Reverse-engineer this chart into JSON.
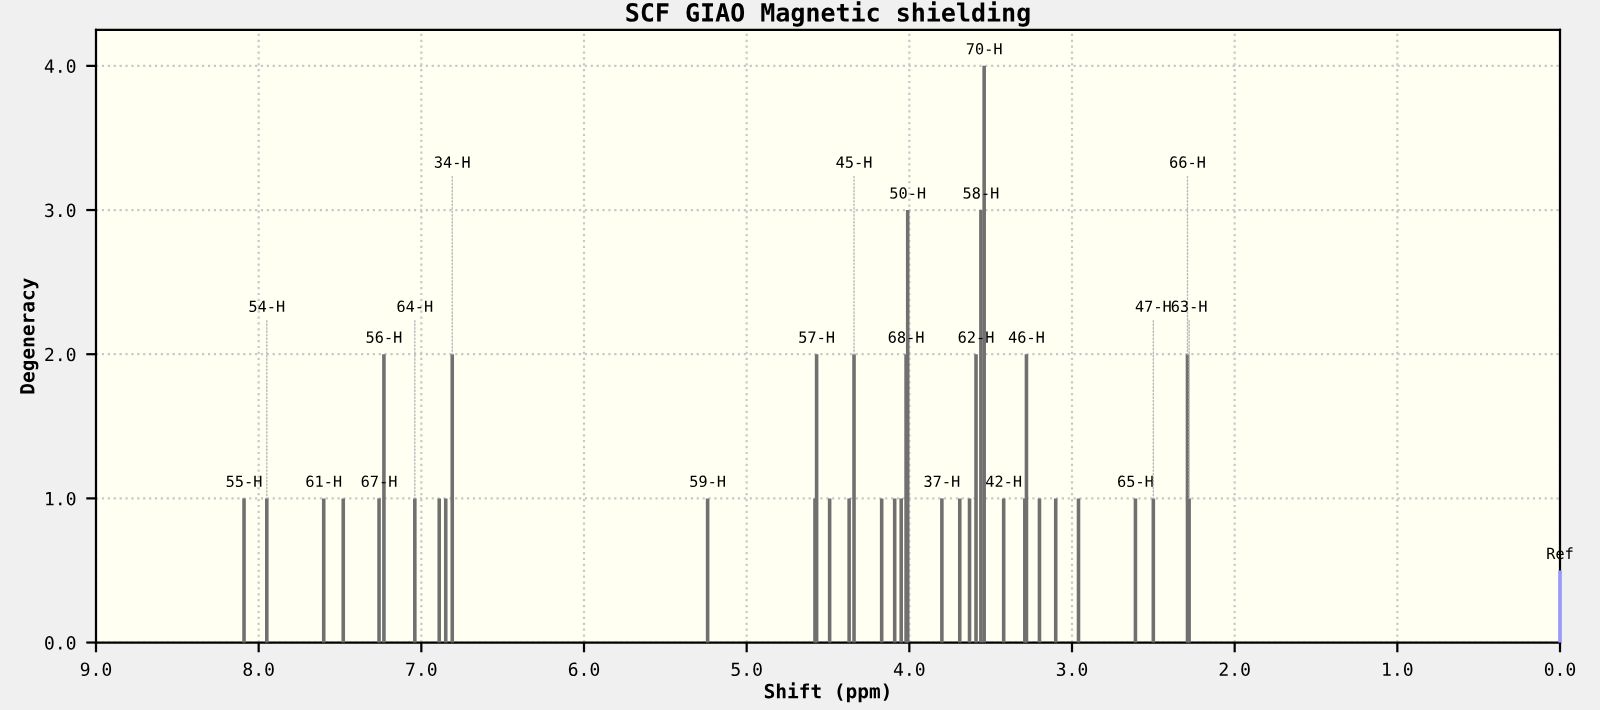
{
  "chart_data": {
    "type": "bar",
    "title": "SCF GIAO Magnetic shielding",
    "xlabel": "Shift (ppm)",
    "ylabel": "Degeneracy",
    "xlim": [
      9.0,
      0.0
    ],
    "xticks": [
      {
        "value": 9,
        "label": "9.0"
      },
      {
        "value": 8,
        "label": "8.0"
      },
      {
        "value": 7,
        "label": "7.0"
      },
      {
        "value": 6,
        "label": "6.0"
      },
      {
        "value": 5,
        "label": "5.0"
      },
      {
        "value": 4,
        "label": "4.0"
      },
      {
        "value": 3,
        "label": "3.0"
      },
      {
        "value": 2,
        "label": "2.0"
      },
      {
        "value": 1,
        "label": "1.0"
      },
      {
        "value": 0,
        "label": "0.0"
      }
    ],
    "ylim": [
      0,
      4.25
    ],
    "yticks": [
      {
        "value": 0,
        "label": "0.0"
      },
      {
        "value": 1,
        "label": "1.0"
      },
      {
        "value": 2,
        "label": "2.0"
      },
      {
        "value": 3,
        "label": "3.0"
      },
      {
        "value": 4,
        "label": "4.0"
      }
    ],
    "grid": true,
    "series": [
      {
        "color": "#707070",
        "x": [
          8.09,
          7.95,
          7.6,
          7.48,
          7.26,
          7.23,
          7.04,
          6.89,
          6.85,
          6.81,
          5.24,
          4.58,
          4.57,
          4.49,
          4.37,
          4.34,
          4.17,
          4.09,
          4.05,
          4.02,
          4.01,
          3.8,
          3.69,
          3.63,
          3.59,
          3.56,
          3.54,
          3.42,
          3.29,
          3.28,
          3.2,
          3.1,
          2.96,
          2.61,
          2.5,
          2.29,
          2.28
        ],
        "values": [
          1,
          1,
          1,
          1,
          1,
          2,
          1,
          1,
          1,
          2,
          1,
          1,
          2,
          1,
          1,
          2,
          1,
          1,
          1,
          2,
          3,
          1,
          1,
          1,
          2,
          3,
          4,
          1,
          1,
          2,
          1,
          1,
          1,
          1,
          1,
          2,
          1
        ]
      },
      {
        "color": "#9999ff",
        "x": [
          0.0
        ],
        "values": [
          0.5
        ]
      }
    ],
    "annotations": [
      {
        "text": "55-H",
        "x": 8.09,
        "y": 1
      },
      {
        "text": "54-H",
        "x": 7.95,
        "y": 1
      },
      {
        "text": "61-H",
        "x": 7.6,
        "y": 1
      },
      {
        "text": "67-H",
        "x": 7.26,
        "y": 1
      },
      {
        "text": "56-H",
        "x": 7.23,
        "y": 2
      },
      {
        "text": "64-H",
        "x": 7.04,
        "y": 1
      },
      {
        "text": "34-H",
        "x": 6.81,
        "y": 2
      },
      {
        "text": "59-H",
        "x": 5.24,
        "y": 1
      },
      {
        "text": "57-H",
        "x": 4.57,
        "y": 2
      },
      {
        "text": "45-H",
        "x": 4.34,
        "y": 2
      },
      {
        "text": "68-H",
        "x": 4.02,
        "y": 2
      },
      {
        "text": "50-H",
        "x": 4.01,
        "y": 3
      },
      {
        "text": "37-H",
        "x": 3.8,
        "y": 1
      },
      {
        "text": "62-H",
        "x": 3.59,
        "y": 2
      },
      {
        "text": "58-H",
        "x": 3.56,
        "y": 3
      },
      {
        "text": "70-H",
        "x": 3.54,
        "y": 4
      },
      {
        "text": "42-H",
        "x": 3.42,
        "y": 1
      },
      {
        "text": "46-H",
        "x": 3.28,
        "y": 2
      },
      {
        "text": "65-H",
        "x": 2.61,
        "y": 1
      },
      {
        "text": "47-H",
        "x": 2.5,
        "y": 1
      },
      {
        "text": "66-H",
        "x": 2.29,
        "y": 2
      },
      {
        "text": "63-H",
        "x": 2.28,
        "y": 1
      },
      {
        "text": "Ref",
        "x": 0.0,
        "y": 0.5
      }
    ]
  }
}
